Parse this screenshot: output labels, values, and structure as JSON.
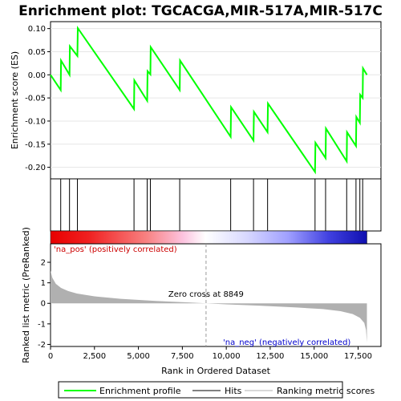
{
  "chart_data": {
    "type": "line",
    "title": "Enrichment plot: TGCACGA,MIR-517A,MIR-517C",
    "es_panel": {
      "ylabel": "Enrichment score (ES)",
      "ylim": [
        -0.225,
        0.115
      ],
      "yticks": [
        "0.10",
        "0.05",
        "0.00",
        "-0.05",
        "-0.10",
        "-0.15",
        "-0.20"
      ],
      "ytick_values": [
        0.1,
        0.05,
        0.0,
        -0.05,
        -0.1,
        -0.15,
        -0.2
      ],
      "series": [
        {
          "name": "Enrichment profile",
          "color": "#00ff00",
          "x": [
            0,
            580,
            600,
            1080,
            1100,
            1530,
            1550,
            4750,
            4770,
            5500,
            5520,
            5680,
            5700,
            7350,
            7370,
            10250,
            10270,
            11550,
            11570,
            12350,
            12370,
            15050,
            15070,
            15650,
            15670,
            16850,
            16870,
            17380,
            17400,
            17600,
            17620,
            17760,
            17780,
            18000
          ],
          "y": [
            0.0,
            -0.033,
            0.031,
            0.0,
            0.062,
            0.041,
            0.101,
            -0.074,
            -0.012,
            -0.056,
            0.008,
            0.001,
            0.06,
            -0.033,
            0.031,
            -0.134,
            -0.07,
            -0.142,
            -0.08,
            -0.124,
            -0.062,
            -0.21,
            -0.147,
            -0.18,
            -0.116,
            -0.187,
            -0.124,
            -0.154,
            -0.091,
            -0.104,
            -0.043,
            -0.05,
            0.014,
            0.0
          ]
        }
      ]
    },
    "hits": [
      580,
      1080,
      1530,
      4750,
      5500,
      5680,
      7350,
      10250,
      11550,
      12350,
      15050,
      15650,
      16850,
      17380,
      17600,
      17760
    ],
    "rank_panel": {
      "ylabel": "Ranked list metric (PreRanked)",
      "xlabel": "Rank in Ordered Dataset",
      "ylim": [
        -2.1,
        2.9
      ],
      "yticks": [
        "2",
        "1",
        "0",
        "-1",
        "-2"
      ],
      "ytick_values": [
        2,
        1,
        0,
        -1,
        -2
      ],
      "xlim": [
        0,
        18800
      ],
      "xticks": [
        "0",
        "2,500",
        "5,000",
        "7,500",
        "10,000",
        "12,500",
        "15,000",
        "17,500"
      ],
      "xtick_values": [
        0,
        2500,
        5000,
        7500,
        10000,
        12500,
        15000,
        17500
      ],
      "zero_cross": 8849,
      "zero_cross_label": "Zero cross at 8849",
      "pos_label": "'na_pos' (positively correlated)",
      "neg_label": "'na_neg' (negatively correlated)",
      "pos_color": "#cc0000",
      "neg_color": "#0000cc",
      "fill_color": "#b0b0b0",
      "metric_points": [
        [
          0,
          1.6
        ],
        [
          100,
          1.25
        ],
        [
          300,
          0.95
        ],
        [
          600,
          0.75
        ],
        [
          1000,
          0.6
        ],
        [
          1500,
          0.48
        ],
        [
          2500,
          0.34
        ],
        [
          4000,
          0.22
        ],
        [
          6000,
          0.12
        ],
        [
          8000,
          0.04
        ],
        [
          8849,
          0.0
        ],
        [
          10000,
          -0.05
        ],
        [
          12000,
          -0.12
        ],
        [
          14000,
          -0.2
        ],
        [
          15500,
          -0.28
        ],
        [
          16500,
          -0.38
        ],
        [
          17200,
          -0.52
        ],
        [
          17600,
          -0.7
        ],
        [
          17850,
          -0.95
        ],
        [
          17950,
          -1.3
        ],
        [
          18000,
          -1.9
        ]
      ]
    },
    "legend": [
      "Enrichment profile",
      "Hits",
      "Ranking metric scores"
    ],
    "max_rank": 18000
  }
}
